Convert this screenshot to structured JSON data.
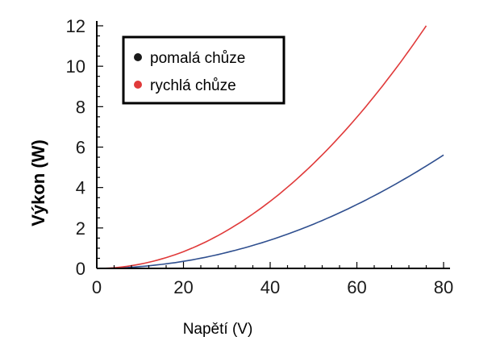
{
  "chart_data": {
    "type": "line",
    "xlabel": "Napětí (V)",
    "ylabel": "Výkon (W)",
    "xlim": [
      0,
      80
    ],
    "ylim": [
      0,
      12
    ],
    "x_ticks": [
      0,
      20,
      40,
      60,
      80
    ],
    "y_ticks": [
      0,
      2,
      4,
      6,
      8,
      10,
      12
    ],
    "grid": false,
    "legend_position": "top-left",
    "series": [
      {
        "name": "pomalá chůze",
        "color": "#2f4f8f",
        "marker_color": "#1a1a1a",
        "x": [
          0,
          10,
          20,
          30,
          40,
          50,
          60,
          70,
          80
        ],
        "y": [
          0,
          0.09,
          0.35,
          0.79,
          1.4,
          2.19,
          3.16,
          4.3,
          5.61
        ]
      },
      {
        "name": "rychlá chůze",
        "color": "#e03a3a",
        "marker_color": "#e03a3a",
        "x": [
          0,
          10,
          20,
          30,
          40,
          50,
          60,
          70,
          76
        ],
        "y": [
          0,
          0.21,
          0.83,
          1.87,
          3.32,
          5.19,
          7.48,
          10.18,
          12.0
        ]
      }
    ]
  }
}
